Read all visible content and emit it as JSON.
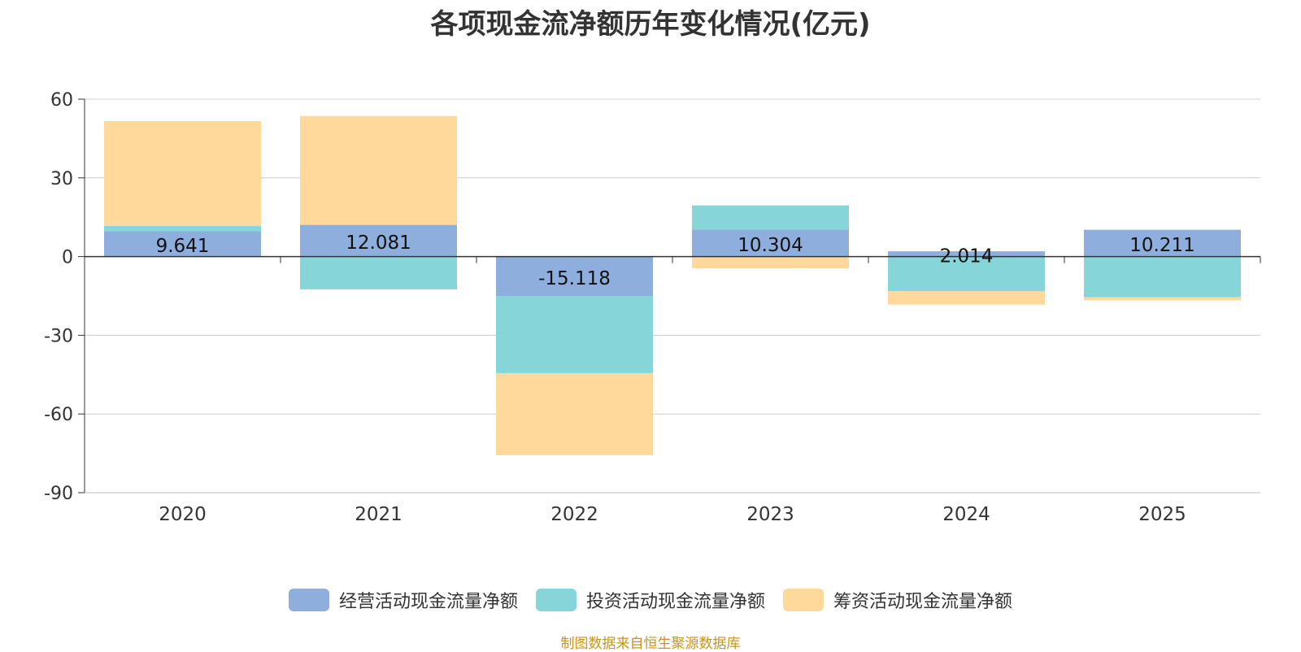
{
  "source_note": "制图数据来自恒生聚源数据库",
  "colors": {
    "operating": "#8eaedd",
    "investing": "#86d5d8",
    "financing": "#fed99b"
  },
  "chart_data": {
    "type": "bar",
    "stacked": true,
    "title": "各项现金流净额历年变化情况(亿元)",
    "xlabel": "",
    "ylabel": "",
    "categories": [
      "2020",
      "2021",
      "2022",
      "2023",
      "2024",
      "2025"
    ],
    "ylim": [
      -90,
      60
    ],
    "yticks": [
      60,
      30,
      0,
      -30,
      -60,
      -90
    ],
    "grid": true,
    "legend_position": "bottom",
    "series": [
      {
        "name": "经营活动现金流量净额",
        "color_key": "operating",
        "values": [
          9.641,
          12.081,
          -15.118,
          10.304,
          2.014,
          10.211
        ]
      },
      {
        "name": "投资活动现金流量净额",
        "color_key": "investing",
        "values": [
          2.0,
          -12.5,
          -29.3,
          9.2,
          -13.2,
          -15.5
        ]
      },
      {
        "name": "筹资活动现金流量净额",
        "color_key": "financing",
        "values": [
          40.0,
          41.5,
          -31.3,
          -4.5,
          -5.1,
          -1.2
        ]
      }
    ],
    "data_labels": [
      "9.641",
      "12.081",
      "-15.118",
      "10.304",
      "2.014",
      "10.211"
    ]
  }
}
